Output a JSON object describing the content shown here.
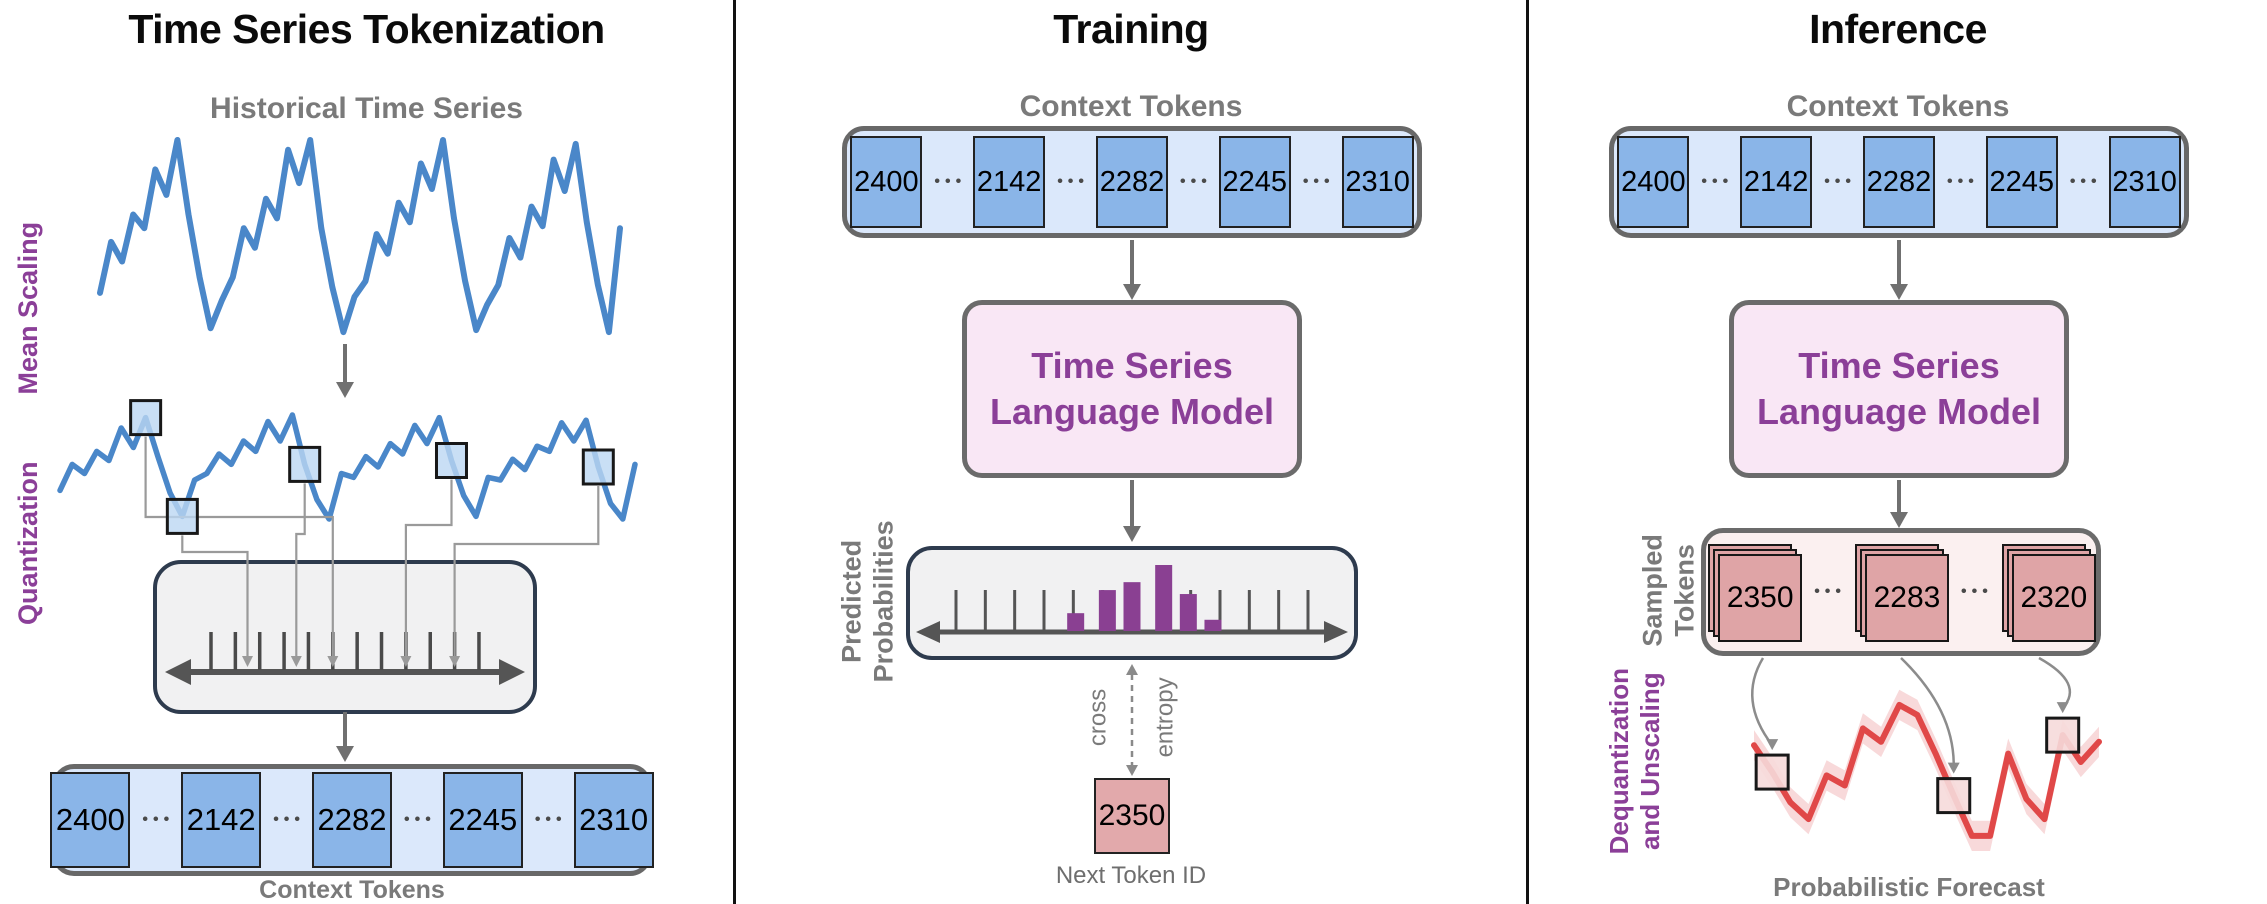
{
  "ellipsis": "•••",
  "panels": {
    "tokenization": {
      "title": "Time Series Tokenization",
      "historical_label": "Historical Time Series",
      "mean_scaling_label": "Mean Scaling",
      "quantization_label": "Quantization",
      "context_tokens": [
        "2400",
        "2142",
        "2282",
        "2245",
        "2310"
      ],
      "context_tokens_label": "Context Tokens"
    },
    "training": {
      "title": "Training",
      "context_tokens_label": "Context Tokens",
      "context_tokens": [
        "2400",
        "2142",
        "2282",
        "2245",
        "2310"
      ],
      "model_name_line1": "Time Series",
      "model_name_line2": "Language Model",
      "predicted_label_line1": "Predicted",
      "predicted_label_line2": "Probabilities",
      "loss_label_line1": "cross",
      "loss_label_line2": "entropy",
      "next_token_value": "2350",
      "next_token_label": "Next Token ID"
    },
    "inference": {
      "title": "Inference",
      "context_tokens_label": "Context Tokens",
      "context_tokens": [
        "2400",
        "2142",
        "2282",
        "2245",
        "2310"
      ],
      "model_name_line1": "Time Series",
      "model_name_line2": "Language Model",
      "sampled_label_line1": "Sampled",
      "sampled_label_line2": "Tokens",
      "sampled_tokens": [
        "2350",
        "2283",
        "2320"
      ],
      "dequantization_label_line1": "Dequantization",
      "dequantization_label_line2": "and Unscaling",
      "forecast_label": "Probabilistic Forecast"
    }
  },
  "colors": {
    "series_blue": "#4a87c9",
    "token_blue_fill": "#8ab5e8",
    "token_container_blue": "#dbe8fb",
    "highlight_square_fill": "#bcd7f3",
    "box_gray_fill": "#f1f1f2",
    "box_navy_border": "#2e3b4e",
    "model_box_fill": "#f9e7f5",
    "purple": "#8b3f98",
    "bar_purple": "#8a4092",
    "pink_token_fill": "#dfa4a6",
    "pink_container_fill": "#fbf0f0",
    "forecast_red": "#e04848",
    "forecast_band": "#f2b3b6",
    "gray_label": "#7a7a7a",
    "arrow_gray": "#707070",
    "connector_gray": "#9a9a9a"
  },
  "chart_data": [
    {
      "type": "line",
      "name": "historical_time_series",
      "panel": "tokenization",
      "title": "Historical Time Series",
      "color": "#4a87c9",
      "ylim": [
        0,
        1
      ],
      "values": [
        0.22,
        0.48,
        0.38,
        0.62,
        0.55,
        0.85,
        0.72,
        1.0,
        0.62,
        0.3,
        0.04,
        0.18,
        0.3,
        0.55,
        0.45,
        0.7,
        0.6,
        0.95,
        0.78,
        1.0,
        0.55,
        0.25,
        0.02,
        0.2,
        0.28,
        0.52,
        0.42,
        0.68,
        0.58,
        0.88,
        0.75,
        1.0,
        0.6,
        0.28,
        0.03,
        0.16,
        0.26,
        0.5,
        0.4,
        0.66,
        0.56,
        0.9,
        0.74,
        0.98,
        0.58,
        0.26,
        0.02,
        0.55
      ]
    },
    {
      "type": "line",
      "name": "mean_scaled_time_series",
      "panel": "tokenization",
      "title": "Mean-scaled series with sampled points highlighted",
      "color": "#4a87c9",
      "ylim": [
        0,
        1
      ],
      "values": [
        0.32,
        0.52,
        0.45,
        0.62,
        0.55,
        0.8,
        0.65,
        0.88,
        0.58,
        0.3,
        0.12,
        0.4,
        0.45,
        0.6,
        0.52,
        0.7,
        0.62,
        0.85,
        0.7,
        0.9,
        0.52,
        0.25,
        0.1,
        0.45,
        0.42,
        0.58,
        0.5,
        0.68,
        0.6,
        0.82,
        0.68,
        0.88,
        0.55,
        0.28,
        0.12,
        0.42,
        0.4,
        0.56,
        0.48,
        0.66,
        0.62,
        0.84,
        0.7,
        0.86,
        0.5,
        0.22,
        0.1,
        0.52
      ],
      "highlight_indices": [
        7,
        10,
        20,
        32,
        44
      ],
      "quantization_bin_fractions": [
        5,
        1.5,
        3.5,
        8,
        10
      ],
      "num_quantization_ticks": 12
    },
    {
      "type": "bar",
      "name": "predicted_probabilities",
      "panel": "training",
      "title": "Predicted Probabilities",
      "color": "#8a4092",
      "num_ticks": 13,
      "bars": [
        {
          "x_frac": 0.34,
          "h": 0.27
        },
        {
          "x_frac": 0.43,
          "h": 0.62
        },
        {
          "x_frac": 0.5,
          "h": 0.74
        },
        {
          "x_frac": 0.59,
          "h": 1.0
        },
        {
          "x_frac": 0.66,
          "h": 0.56
        },
        {
          "x_frac": 0.73,
          "h": 0.17
        }
      ]
    },
    {
      "type": "line",
      "name": "probabilistic_forecast",
      "panel": "inference",
      "title": "Probabilistic Forecast",
      "color": "#e04848",
      "band": 0.09,
      "ylim": [
        0,
        1
      ],
      "values": [
        0.6,
        0.44,
        0.26,
        0.16,
        0.42,
        0.36,
        0.7,
        0.62,
        0.84,
        0.78,
        0.55,
        0.3,
        0.06,
        0.06,
        0.55,
        0.28,
        0.16,
        0.66,
        0.5,
        0.62
      ],
      "token_indices": [
        1,
        11,
        17
      ]
    }
  ]
}
